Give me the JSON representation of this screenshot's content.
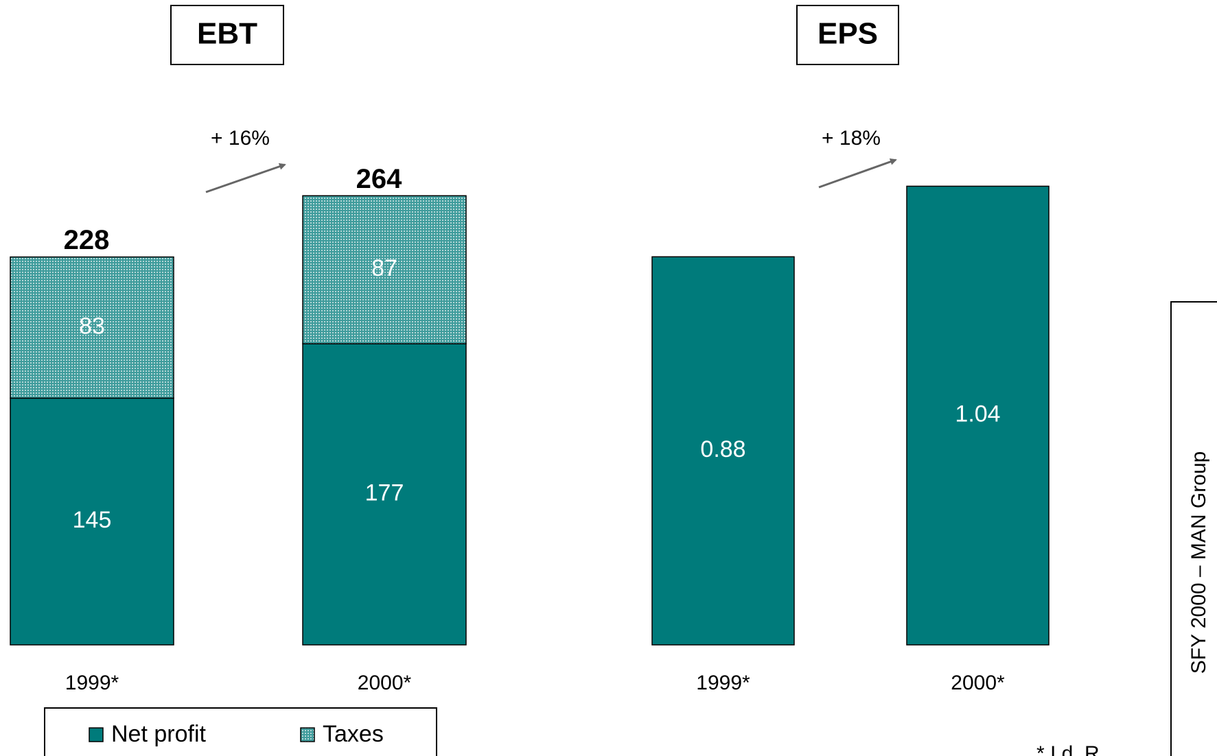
{
  "chart_data": [
    {
      "type": "stacked_bar",
      "title": "EBT",
      "categories": [
        "1999*",
        "2000*"
      ],
      "series": [
        {
          "name": "Net profit",
          "color": "#007b7b",
          "values": [
            145,
            177
          ]
        },
        {
          "name": "Taxes",
          "color": "#3f9c9c",
          "values": [
            83,
            87
          ]
        }
      ],
      "totals": [
        228,
        264
      ],
      "annotation": "+ 16%",
      "ylim": [
        0,
        300
      ]
    },
    {
      "type": "bar",
      "title": "EPS",
      "categories": [
        "1999*",
        "2000*"
      ],
      "values": [
        0.88,
        1.04
      ],
      "color": "#007b7b",
      "annotation": "+ 18%",
      "ylim": [
        0,
        1.4
      ]
    }
  ],
  "side_label": "SFY 2000 – MAN Group",
  "footnote": "* I.d. R"
}
